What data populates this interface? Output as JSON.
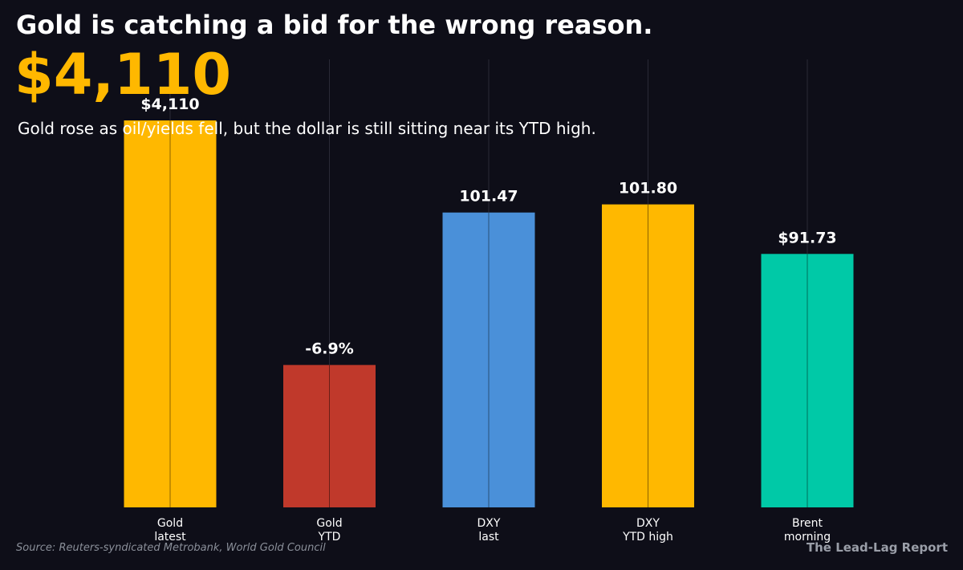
{
  "header": {
    "title": "Gold is catching a bid for the wrong reason.",
    "headline_value": "$4,110",
    "subtitle": "Gold rose as oil/yields fell, but the dollar is still sitting near its YTD high."
  },
  "footer": {
    "source": "Source: Reuters-syndicated Metrobank, World Gold Council",
    "brand": "The Lead-Lag Report"
  },
  "colors": {
    "background": "#0e0e18",
    "gold": "#ffb800",
    "red": "#c0392b",
    "blue": "#4a90d9",
    "teal": "#00c9a7",
    "text": "#ffffff",
    "muted": "#8a8f99",
    "gridline": "#2a2a36"
  },
  "chart_data": {
    "type": "bar",
    "categories": [
      [
        "Gold",
        "latest"
      ],
      [
        "Gold",
        "YTD"
      ],
      [
        "DXY",
        "last"
      ],
      [
        "DXY",
        "YTD high"
      ],
      [
        "Brent",
        "morning"
      ]
    ],
    "values": [
      4110,
      -6.9,
      101.47,
      101.8,
      91.73
    ],
    "relative_heights": [
      1.0,
      0.368,
      0.762,
      0.783,
      0.655
    ],
    "value_labels": [
      "$4,110",
      "-6.9%",
      "101.47",
      "101.80",
      "$91.73"
    ],
    "bar_colors": [
      "#ffb800",
      "#c0392b",
      "#4a90d9",
      "#ffb800",
      "#00c9a7"
    ],
    "grid": true,
    "legend": "none"
  }
}
